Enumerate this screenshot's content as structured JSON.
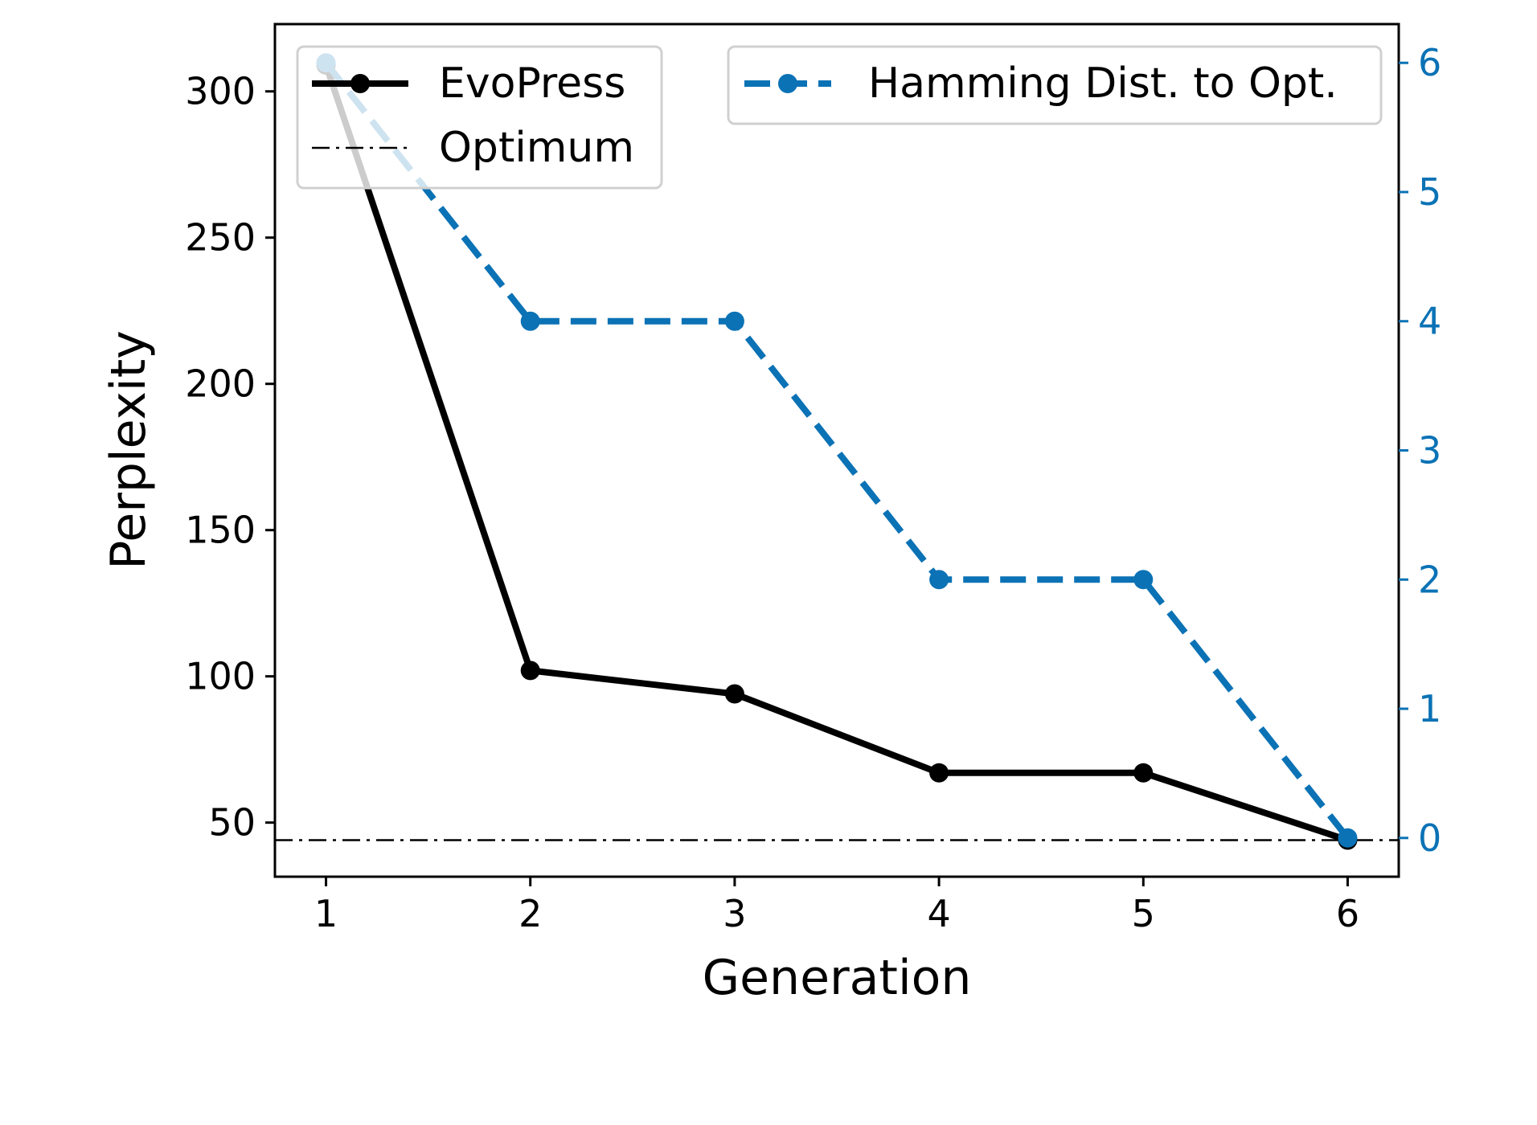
{
  "chart_data": {
    "type": "line",
    "title": "",
    "xlabel": "Generation",
    "ylabel": "Perplexity",
    "x": [
      1,
      2,
      3,
      4,
      5,
      6
    ],
    "xticks": [
      1,
      2,
      3,
      4,
      5,
      6
    ],
    "xlim": [
      0.75,
      6.25
    ],
    "ylim": [
      31.5,
      323
    ],
    "yticks": [
      50,
      100,
      150,
      200,
      250,
      300
    ],
    "y2lim": [
      -0.3,
      6.3
    ],
    "y2ticks": [
      0,
      1,
      2,
      3,
      4,
      5,
      6
    ],
    "grid": false,
    "series": [
      {
        "name": "EvoPress",
        "axis": "left",
        "values": [
          309,
          102,
          94,
          67,
          67,
          44
        ],
        "color": "#000000",
        "style": "solid-marker"
      },
      {
        "name": "Optimum",
        "axis": "left",
        "value": 44,
        "color": "#000000",
        "style": "dash-dot"
      },
      {
        "name": "Hamming Dist. to Opt.",
        "axis": "right",
        "values": [
          6,
          4,
          4,
          2,
          2,
          0
        ],
        "color": "#0b72b5",
        "style": "dashed-marker"
      }
    ],
    "legend": [
      {
        "position": "top-left",
        "entries": [
          "EvoPress",
          "Optimum"
        ]
      },
      {
        "position": "top-right",
        "entries": [
          "Hamming Dist. to Opt."
        ]
      }
    ]
  }
}
